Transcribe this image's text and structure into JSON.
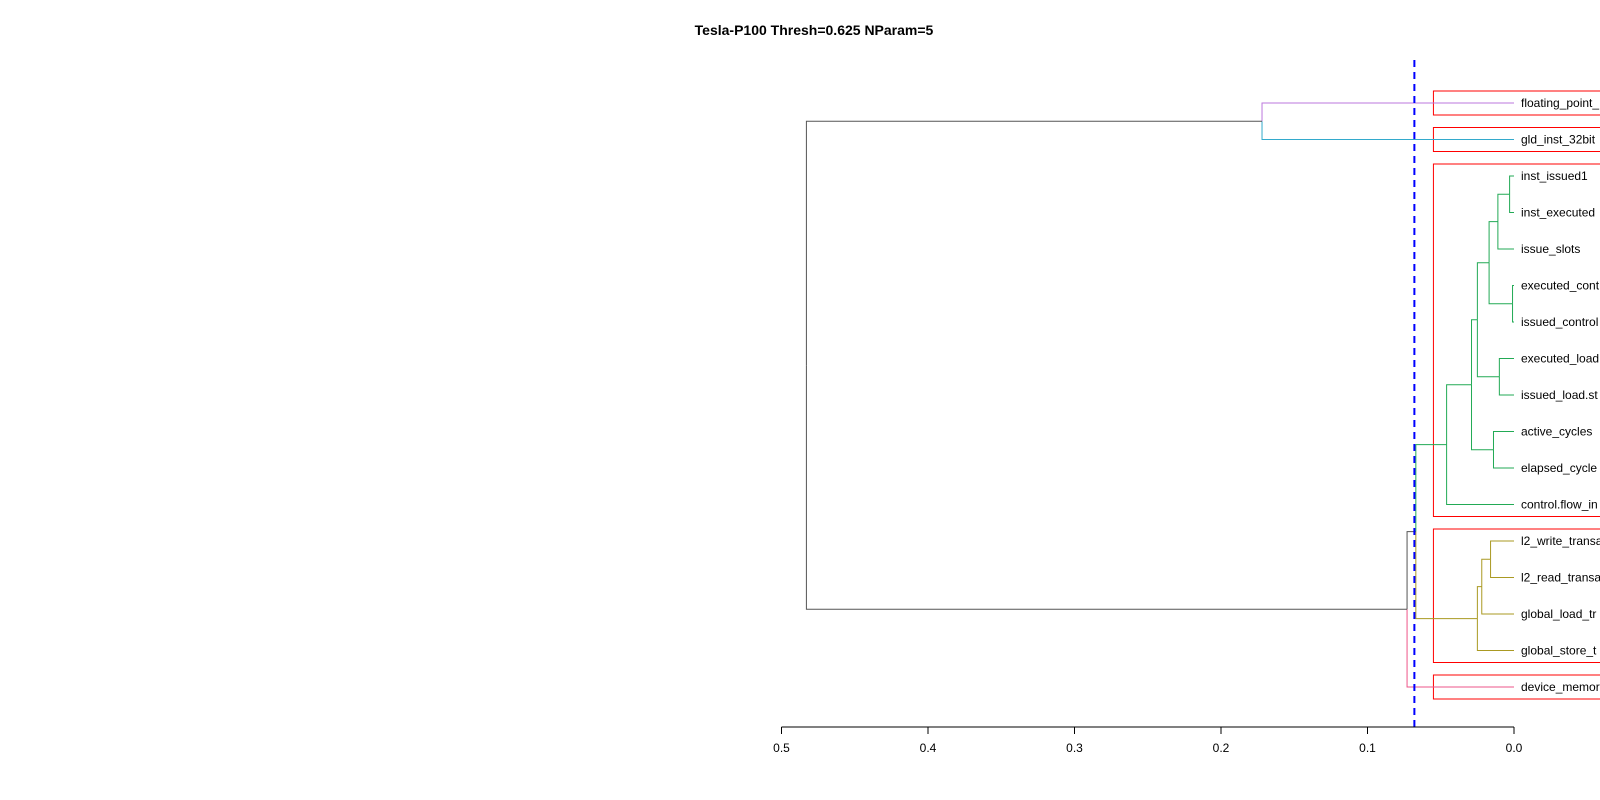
{
  "chart_data": {
    "type": "dendrogram",
    "title": "Tesla-P100 Thresh=0.625 NParam=5",
    "xlabel": "",
    "ylabel": "",
    "xlim": [
      0.5,
      0.0
    ],
    "axis_ticks": [
      "0.5",
      "0.4",
      "0.3",
      "0.2",
      "0.1",
      "0.0"
    ],
    "axis_tick_values": [
      0.5,
      0.4,
      0.3,
      0.2,
      0.1,
      0.0
    ],
    "threshold": 0.068,
    "threshold_color": "#0000ff",
    "leaves": [
      "floating_point_",
      "gld_inst_32bit",
      "inst_issued1",
      "inst_executed",
      "issue_slots",
      "executed_cont",
      "issued_control",
      "executed_load",
      "issued_load.st",
      "active_cycles",
      "elapsed_cycle",
      "control.flow_in",
      "l2_write_transa",
      "l2_read_transa",
      "global_load_tr",
      "global_store_t",
      "device_memor"
    ],
    "merges": [
      {
        "id": "n1",
        "left": "L2",
        "right": "L3",
        "height": 0.003,
        "color": "#22aa55"
      },
      {
        "id": "n2",
        "left": "n1",
        "right": "L4",
        "height": 0.011,
        "color": "#22aa55"
      },
      {
        "id": "n3",
        "left": "L5",
        "right": "L6",
        "height": 0.001,
        "color": "#22aa55"
      },
      {
        "id": "n4",
        "left": "n2",
        "right": "n3",
        "height": 0.017,
        "color": "#22aa55"
      },
      {
        "id": "n5",
        "left": "L7",
        "right": "L8",
        "height": 0.01,
        "color": "#22aa55"
      },
      {
        "id": "n6",
        "left": "n4",
        "right": "n5",
        "height": 0.025,
        "color": "#22aa55"
      },
      {
        "id": "n7",
        "left": "L9",
        "right": "L10",
        "height": 0.014,
        "color": "#22aa55"
      },
      {
        "id": "n8",
        "left": "n6",
        "right": "n7",
        "height": 0.029,
        "color": "#22aa55"
      },
      {
        "id": "n9",
        "left": "n8",
        "right": "L11",
        "height": 0.046,
        "color": "#22aa55"
      },
      {
        "id": "n10",
        "left": "L12",
        "right": "L13",
        "height": 0.016,
        "color": "#aa9922"
      },
      {
        "id": "n11",
        "left": "n10",
        "right": "L14",
        "height": 0.022,
        "color": "#aa9922"
      },
      {
        "id": "n12",
        "left": "n11",
        "right": "L15",
        "height": 0.025,
        "color": "#aa9922"
      },
      {
        "id": "n13",
        "left": "n9",
        "right": "n12",
        "height": 0.067,
        "color": "#555555",
        "left_color": "#22aa55",
        "right_color": "#aa9922"
      },
      {
        "id": "n14",
        "left": "n13",
        "right": "L16",
        "height": 0.073,
        "color": "#555555",
        "right_color": "#ee5588"
      },
      {
        "id": "n15",
        "left": "L0",
        "right": "L1",
        "height": 0.172,
        "color": "#555555",
        "left_color": "#bb77dd",
        "right_color": "#33aacc"
      },
      {
        "id": "n16",
        "left": "n15",
        "right": "n14",
        "height": 0.483,
        "color": "#555555"
      }
    ],
    "clusters": [
      {
        "first": 0,
        "last": 0
      },
      {
        "first": 1,
        "last": 1
      },
      {
        "first": 2,
        "last": 11
      },
      {
        "first": 12,
        "last": 15
      },
      {
        "first": 16,
        "last": 16
      }
    ],
    "cluster_box_color": "#ff0000"
  }
}
